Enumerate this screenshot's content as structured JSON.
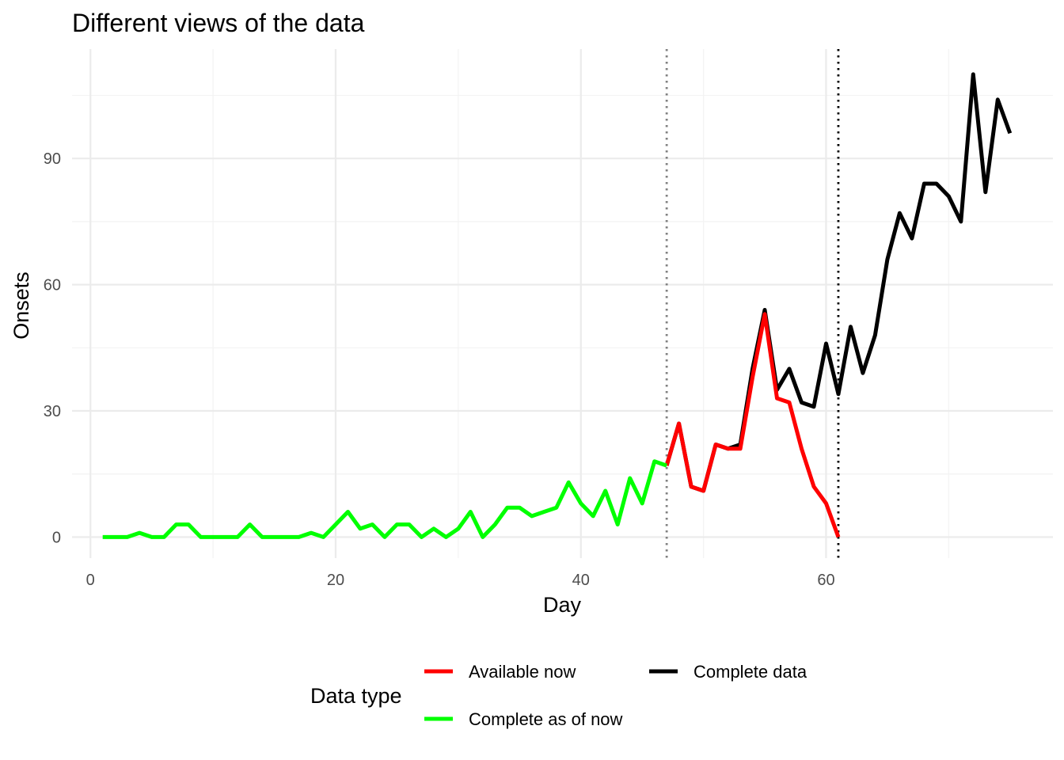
{
  "chart_data": {
    "type": "line",
    "title": "Different views of the data",
    "xlabel": "Day",
    "ylabel": "Onsets",
    "xlim": [
      -1.5,
      78.5
    ],
    "ylim": [
      -5,
      116
    ],
    "x_ticks": [
      0,
      20,
      40,
      60
    ],
    "y_ticks": [
      0,
      30,
      60,
      90
    ],
    "grid": true,
    "legend": {
      "title": "Data type",
      "position": "bottom"
    },
    "vlines": [
      {
        "x": 47,
        "style": "dotted",
        "color": "#808080"
      },
      {
        "x": 61,
        "style": "dotted",
        "color": "#000000"
      }
    ],
    "series": [
      {
        "name": "Complete data",
        "color": "#000000",
        "points": [
          [
            47,
            17
          ],
          [
            48,
            27
          ],
          [
            49,
            12
          ],
          [
            50,
            11
          ],
          [
            51,
            22
          ],
          [
            52,
            21
          ],
          [
            53,
            22
          ],
          [
            54,
            40
          ],
          [
            55,
            54
          ],
          [
            56,
            35
          ],
          [
            57,
            40
          ],
          [
            58,
            32
          ],
          [
            59,
            31
          ],
          [
            60,
            46
          ],
          [
            61,
            34
          ],
          [
            62,
            50
          ],
          [
            63,
            39
          ],
          [
            64,
            48
          ],
          [
            65,
            66
          ],
          [
            66,
            77
          ],
          [
            67,
            71
          ],
          [
            68,
            84
          ],
          [
            69,
            84
          ],
          [
            70,
            81
          ],
          [
            71,
            75
          ],
          [
            72,
            110
          ],
          [
            73,
            82
          ],
          [
            74,
            104
          ],
          [
            75,
            96
          ]
        ]
      },
      {
        "name": "Available now",
        "color": "#ff0000",
        "points": [
          [
            47,
            17
          ],
          [
            48,
            27
          ],
          [
            49,
            12
          ],
          [
            50,
            11
          ],
          [
            51,
            22
          ],
          [
            52,
            21
          ],
          [
            53,
            21
          ],
          [
            54,
            38
          ],
          [
            55,
            53
          ],
          [
            56,
            33
          ],
          [
            57,
            32
          ],
          [
            58,
            21
          ],
          [
            59,
            12
          ],
          [
            60,
            8
          ],
          [
            61,
            0
          ]
        ]
      },
      {
        "name": "Complete as of now",
        "color": "#00ff00",
        "points": [
          [
            1,
            0
          ],
          [
            2,
            0
          ],
          [
            3,
            0
          ],
          [
            4,
            1
          ],
          [
            5,
            0
          ],
          [
            6,
            0
          ],
          [
            7,
            3
          ],
          [
            8,
            3
          ],
          [
            9,
            0
          ],
          [
            10,
            0
          ],
          [
            11,
            0
          ],
          [
            12,
            0
          ],
          [
            13,
            3
          ],
          [
            14,
            0
          ],
          [
            15,
            0
          ],
          [
            16,
            0
          ],
          [
            17,
            0
          ],
          [
            18,
            1
          ],
          [
            19,
            0
          ],
          [
            20,
            3
          ],
          [
            21,
            6
          ],
          [
            22,
            2
          ],
          [
            23,
            3
          ],
          [
            24,
            0
          ],
          [
            25,
            3
          ],
          [
            26,
            3
          ],
          [
            27,
            0
          ],
          [
            28,
            2
          ],
          [
            29,
            0
          ],
          [
            30,
            2
          ],
          [
            31,
            6
          ],
          [
            32,
            0
          ],
          [
            33,
            3
          ],
          [
            34,
            7
          ],
          [
            35,
            7
          ],
          [
            36,
            5
          ],
          [
            37,
            6
          ],
          [
            38,
            7
          ],
          [
            39,
            13
          ],
          [
            40,
            8
          ],
          [
            41,
            5
          ],
          [
            42,
            11
          ],
          [
            43,
            3
          ],
          [
            44,
            14
          ],
          [
            45,
            8
          ],
          [
            46,
            18
          ],
          [
            47,
            17
          ]
        ]
      }
    ]
  }
}
